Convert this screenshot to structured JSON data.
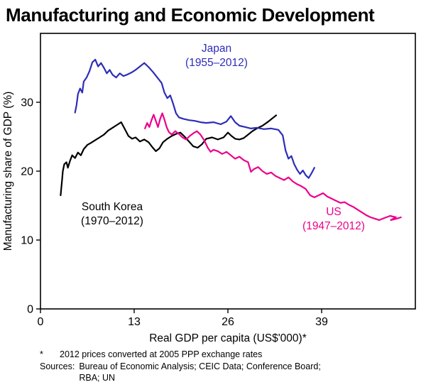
{
  "title": "Manufacturing and Economic Development",
  "chart_data": {
    "type": "line",
    "title": "Manufacturing and Economic Development",
    "xlabel": "Real GDP per capita (US$'000)*",
    "ylabel": "Manufacturing share of GDP (%)",
    "xlim": [
      0,
      52
    ],
    "ylim": [
      0,
      40
    ],
    "x_ticks": [
      0,
      13,
      26,
      39
    ],
    "y_ticks": [
      0,
      10,
      20,
      30
    ],
    "grid": false,
    "legend_position": "inline-annotations",
    "series": [
      {
        "name": "Japan",
        "period": "1955–2012",
        "color": "#2d2db8",
        "points": [
          [
            4.8,
            28.5
          ],
          [
            5.0,
            29.6
          ],
          [
            5.2,
            31.2
          ],
          [
            5.5,
            32.0
          ],
          [
            5.8,
            31.4
          ],
          [
            6.0,
            33.0
          ],
          [
            6.4,
            33.6
          ],
          [
            6.8,
            34.5
          ],
          [
            7.2,
            35.8
          ],
          [
            7.6,
            36.2
          ],
          [
            8.0,
            35.2
          ],
          [
            8.4,
            35.7
          ],
          [
            8.8,
            35.0
          ],
          [
            9.2,
            34.2
          ],
          [
            9.6,
            34.7
          ],
          [
            10.0,
            34.0
          ],
          [
            10.5,
            33.6
          ],
          [
            11.0,
            34.2
          ],
          [
            11.5,
            33.8
          ],
          [
            12.0,
            34.0
          ],
          [
            12.6,
            34.3
          ],
          [
            13.2,
            34.7
          ],
          [
            13.8,
            35.2
          ],
          [
            14.4,
            35.7
          ],
          [
            15.0,
            35.1
          ],
          [
            15.6,
            34.4
          ],
          [
            16.2,
            33.6
          ],
          [
            16.8,
            32.8
          ],
          [
            17.2,
            31.4
          ],
          [
            17.6,
            30.6
          ],
          [
            18.0,
            31.0
          ],
          [
            18.4,
            29.8
          ],
          [
            18.8,
            28.4
          ],
          [
            19.2,
            27.8
          ],
          [
            19.8,
            27.6
          ],
          [
            20.6,
            27.4
          ],
          [
            21.4,
            27.3
          ],
          [
            22.2,
            27.1
          ],
          [
            23.0,
            27.0
          ],
          [
            24.0,
            27.1
          ],
          [
            25.0,
            26.8
          ],
          [
            25.8,
            27.2
          ],
          [
            26.4,
            28.0
          ],
          [
            27.0,
            27.1
          ],
          [
            27.6,
            26.6
          ],
          [
            28.4,
            26.4
          ],
          [
            29.2,
            26.2
          ],
          [
            30.0,
            26.3
          ],
          [
            31.0,
            26.1
          ],
          [
            32.0,
            26.2
          ],
          [
            33.0,
            26.0
          ],
          [
            33.6,
            25.2
          ],
          [
            34.0,
            23.0
          ],
          [
            34.4,
            21.8
          ],
          [
            34.8,
            22.2
          ],
          [
            35.2,
            21.0
          ],
          [
            35.6,
            20.2
          ],
          [
            36.0,
            19.6
          ],
          [
            36.4,
            20.1
          ],
          [
            36.8,
            19.4
          ],
          [
            37.2,
            19.0
          ],
          [
            37.6,
            19.7
          ],
          [
            38.0,
            20.5
          ]
        ]
      },
      {
        "name": "South Korea",
        "period": "1970–2012",
        "color": "#000000",
        "points": [
          [
            2.8,
            16.5
          ],
          [
            3.0,
            18.8
          ],
          [
            3.1,
            20.0
          ],
          [
            3.3,
            21.0
          ],
          [
            3.6,
            21.3
          ],
          [
            3.8,
            20.5
          ],
          [
            4.1,
            21.5
          ],
          [
            4.4,
            22.3
          ],
          [
            4.8,
            21.9
          ],
          [
            5.2,
            22.7
          ],
          [
            5.6,
            22.3
          ],
          [
            6.0,
            23.2
          ],
          [
            6.5,
            23.8
          ],
          [
            7.0,
            24.1
          ],
          [
            7.6,
            24.5
          ],
          [
            8.2,
            24.9
          ],
          [
            8.8,
            25.3
          ],
          [
            9.4,
            25.9
          ],
          [
            10.0,
            26.3
          ],
          [
            10.6,
            26.7
          ],
          [
            11.2,
            27.1
          ],
          [
            11.7,
            26.1
          ],
          [
            12.2,
            25.1
          ],
          [
            12.7,
            24.7
          ],
          [
            13.2,
            24.9
          ],
          [
            13.8,
            24.3
          ],
          [
            14.4,
            24.6
          ],
          [
            15.0,
            24.2
          ],
          [
            15.5,
            23.5
          ],
          [
            16.0,
            22.9
          ],
          [
            16.5,
            23.3
          ],
          [
            17.0,
            24.2
          ],
          [
            17.6,
            24.7
          ],
          [
            18.2,
            25.1
          ],
          [
            18.8,
            25.4
          ],
          [
            19.4,
            25.6
          ],
          [
            20.0,
            25.0
          ],
          [
            20.6,
            24.3
          ],
          [
            21.2,
            23.6
          ],
          [
            21.8,
            23.4
          ],
          [
            22.4,
            23.9
          ],
          [
            23.0,
            24.7
          ],
          [
            23.8,
            24.9
          ],
          [
            24.6,
            24.6
          ],
          [
            25.4,
            24.9
          ],
          [
            26.0,
            25.6
          ],
          [
            26.5,
            25.1
          ],
          [
            27.0,
            24.7
          ],
          [
            27.6,
            24.6
          ],
          [
            28.2,
            24.8
          ],
          [
            28.8,
            25.3
          ],
          [
            29.4,
            25.8
          ],
          [
            30.0,
            26.2
          ],
          [
            30.8,
            26.6
          ],
          [
            31.6,
            27.2
          ],
          [
            32.2,
            27.7
          ],
          [
            32.7,
            28.1
          ]
        ]
      },
      {
        "name": "US",
        "period": "1947–2012",
        "color": "#ec008c",
        "points": [
          [
            14.5,
            26.2
          ],
          [
            14.8,
            27.0
          ],
          [
            15.1,
            26.4
          ],
          [
            15.4,
            27.4
          ],
          [
            15.7,
            28.2
          ],
          [
            16.0,
            27.3
          ],
          [
            16.3,
            26.4
          ],
          [
            16.6,
            27.6
          ],
          [
            16.9,
            28.4
          ],
          [
            17.2,
            27.5
          ],
          [
            17.5,
            26.4
          ],
          [
            17.8,
            25.7
          ],
          [
            18.2,
            25.3
          ],
          [
            18.7,
            25.8
          ],
          [
            19.2,
            25.4
          ],
          [
            19.7,
            24.9
          ],
          [
            20.2,
            24.6
          ],
          [
            20.7,
            25.1
          ],
          [
            21.2,
            25.5
          ],
          [
            21.7,
            25.8
          ],
          [
            22.2,
            25.3
          ],
          [
            22.7,
            24.5
          ],
          [
            23.2,
            23.4
          ],
          [
            23.6,
            22.8
          ],
          [
            24.0,
            23.1
          ],
          [
            24.6,
            22.9
          ],
          [
            25.2,
            22.5
          ],
          [
            25.8,
            22.8
          ],
          [
            26.4,
            22.3
          ],
          [
            27.0,
            21.8
          ],
          [
            27.6,
            22.1
          ],
          [
            28.2,
            21.6
          ],
          [
            28.8,
            21.3
          ],
          [
            29.2,
            19.9
          ],
          [
            29.6,
            20.3
          ],
          [
            30.2,
            20.6
          ],
          [
            30.8,
            20.0
          ],
          [
            31.4,
            19.6
          ],
          [
            32.0,
            19.8
          ],
          [
            32.6,
            19.3
          ],
          [
            33.2,
            19.0
          ],
          [
            33.8,
            18.7
          ],
          [
            34.4,
            19.1
          ],
          [
            35.0,
            18.5
          ],
          [
            35.6,
            18.1
          ],
          [
            36.2,
            17.8
          ],
          [
            36.8,
            17.4
          ],
          [
            37.4,
            16.5
          ],
          [
            38.0,
            16.2
          ],
          [
            38.6,
            16.5
          ],
          [
            39.2,
            16.8
          ],
          [
            39.8,
            16.3
          ],
          [
            40.4,
            16.0
          ],
          [
            41.0,
            15.7
          ],
          [
            41.6,
            15.4
          ],
          [
            42.2,
            15.5
          ],
          [
            42.8,
            15.1
          ],
          [
            43.4,
            14.8
          ],
          [
            44.0,
            14.4
          ],
          [
            44.6,
            14.0
          ],
          [
            45.2,
            13.6
          ],
          [
            45.8,
            13.3
          ],
          [
            46.4,
            13.1
          ],
          [
            47.0,
            12.9
          ],
          [
            47.7,
            13.2
          ],
          [
            48.5,
            13.5
          ],
          [
            49.3,
            13.3
          ],
          [
            48.6,
            12.9
          ],
          [
            49.4,
            13.1
          ],
          [
            50.0,
            13.3
          ]
        ]
      }
    ]
  },
  "annotations": {
    "japan": {
      "line1": "Japan",
      "line2": "(1955–2012)"
    },
    "korea": {
      "line1": "South Korea",
      "line2": "(1970–2012)"
    },
    "us": {
      "line1": "US",
      "line2": "(1947–2012)"
    }
  },
  "footnotes": {
    "marker": "*",
    "note": "2012 prices converted at 2005 PPP exchange rates",
    "sources_label": "Sources:",
    "sources_lines": [
      "Bureau of Economic Analysis; CEIC Data; Conference Board;",
      "RBA; UN"
    ]
  }
}
